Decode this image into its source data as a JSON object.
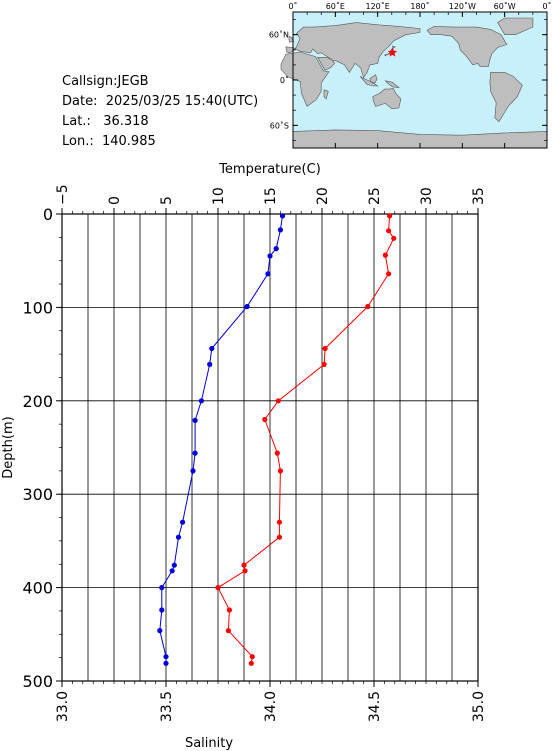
{
  "info": {
    "callsign": "Callsign:JEGB",
    "date": "Date:  2025/03/25 15:40(UTC)",
    "lat": "Lat.:   36.318",
    "lon": "Lon.:  140.985"
  },
  "map": {
    "top_ticks": [
      "0˚",
      "60˚E",
      "120˚E",
      "180˚",
      "120˚W",
      "60˚W",
      "0˚"
    ],
    "left_ticks": [
      "60˚N",
      "0˚",
      "60˚S"
    ],
    "ocean_color": "#c8f0fa",
    "land_color": "#bebebe",
    "station_lon": 140.985,
    "station_lat": 36.318,
    "marker_color": "#ff0000"
  },
  "chart_data": {
    "type": "line",
    "x_top_label": "Temperature(C)",
    "x_bottom_label": "Salinity",
    "y_label": "Depth(m)",
    "temperature_range": [
      -5,
      35
    ],
    "salinity_range": [
      33.0,
      35.0
    ],
    "depth_range": [
      0,
      500
    ],
    "temperature_ticks": [
      "−5",
      "0",
      "5",
      "10",
      "15",
      "20",
      "25",
      "30",
      "35"
    ],
    "salinity_ticks": [
      "33.0",
      "33.5",
      "34.0",
      "34.5",
      "35.0"
    ],
    "depth_ticks": [
      "0",
      "100",
      "200",
      "300",
      "400",
      "500"
    ],
    "grid": true,
    "series": [
      {
        "color": "#ff0000",
        "axis": "temperature",
        "points": [
          [
            26.5,
            2
          ],
          [
            26.4,
            18
          ],
          [
            26.9,
            26
          ],
          [
            26.1,
            44
          ],
          [
            26.4,
            64
          ],
          [
            24.4,
            99
          ],
          [
            20.3,
            144
          ],
          [
            20.2,
            161
          ],
          [
            15.8,
            200
          ],
          [
            14.5,
            220
          ],
          [
            15.7,
            256
          ],
          [
            16.0,
            275
          ],
          [
            15.9,
            330
          ],
          [
            15.9,
            346
          ],
          [
            12.5,
            376
          ],
          [
            12.6,
            382
          ],
          [
            10.0,
            400
          ],
          [
            11.1,
            424
          ],
          [
            11.0,
            446
          ],
          [
            13.3,
            474
          ],
          [
            13.2,
            481
          ]
        ]
      },
      {
        "color": "#0000dd",
        "axis": "salinity",
        "points": [
          [
            34.06,
            2
          ],
          [
            34.05,
            17
          ],
          [
            34.03,
            37
          ],
          [
            34.0,
            45
          ],
          [
            33.99,
            64
          ],
          [
            33.89,
            99
          ],
          [
            33.72,
            144
          ],
          [
            33.71,
            161
          ],
          [
            33.67,
            200
          ],
          [
            33.64,
            221
          ],
          [
            33.64,
            256
          ],
          [
            33.63,
            275
          ],
          [
            33.58,
            330
          ],
          [
            33.56,
            346
          ],
          [
            33.54,
            376
          ],
          [
            33.53,
            382
          ],
          [
            33.48,
            400
          ],
          [
            33.48,
            424
          ],
          [
            33.47,
            446
          ],
          [
            33.5,
            474
          ],
          [
            33.5,
            481
          ]
        ]
      }
    ]
  }
}
